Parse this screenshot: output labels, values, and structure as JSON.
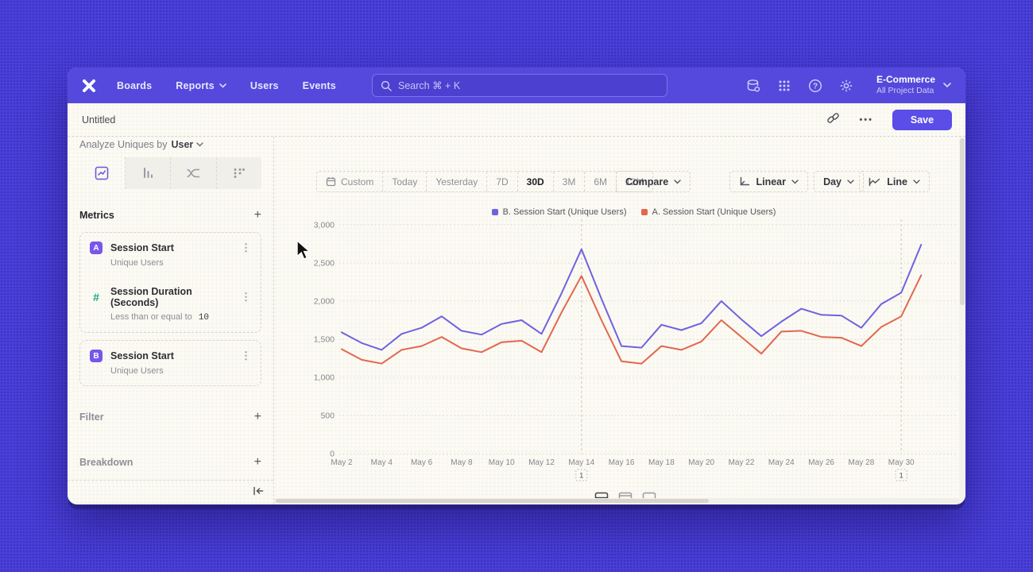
{
  "nav": {
    "menu": [
      "Boards",
      "Reports",
      "Users",
      "Events"
    ],
    "search_placeholder": "Search  ⌘ + K",
    "workspace": {
      "name": "E-Commerce",
      "subtitle": "All Project Data"
    }
  },
  "titlebar": {
    "title": "Untitled",
    "more_label": "•••",
    "save_label": "Save"
  },
  "sidebar": {
    "analyze_prefix": "Analyze Uniques by",
    "analyze_value": "User",
    "metrics_header": "Metrics",
    "metrics": [
      {
        "badge": "A",
        "badge_color": "#7856eb",
        "name": "Session Start",
        "subtitle": "Unique Users"
      },
      {
        "badge": "#",
        "badge_color": "#13a688",
        "name": "Session Duration (Seconds)",
        "subtitle_prefix": "Less than or equal to",
        "subtitle_value": "10"
      },
      {
        "badge": "B",
        "badge_color": "#7856eb",
        "name": "Session Start",
        "subtitle": "Unique Users"
      }
    ],
    "filter_header": "Filter",
    "breakdown_header": "Breakdown"
  },
  "controls": {
    "date_ranges": [
      "Custom",
      "Today",
      "Yesterday",
      "7D",
      "30D",
      "3M",
      "6M",
      "12M"
    ],
    "selected_range": "30D",
    "compare_label": "Compare",
    "scale_label": "Linear",
    "granularity_label": "Day",
    "chart_type_label": "Line"
  },
  "colors": {
    "accent": "#5a4de8",
    "nav_bar": "#5449dc",
    "series_b": "#6e63df",
    "series_a": "#e2674f"
  },
  "chart_data": {
    "type": "line",
    "x": [
      "May 2",
      "May 3",
      "May 4",
      "May 5",
      "May 6",
      "May 7",
      "May 8",
      "May 9",
      "May 10",
      "May 11",
      "May 12",
      "May 13",
      "May 14",
      "May 15",
      "May 16",
      "May 17",
      "May 18",
      "May 19",
      "May 20",
      "May 21",
      "May 22",
      "May 23",
      "May 24",
      "May 25",
      "May 26",
      "May 27",
      "May 28",
      "May 29",
      "May 30",
      "May 31"
    ],
    "series": [
      {
        "name": "B. Session Start (Unique Users)",
        "color": "#6e63df",
        "values": [
          1590,
          1450,
          1360,
          1570,
          1650,
          1800,
          1610,
          1560,
          1700,
          1750,
          1570,
          2100,
          2680,
          2030,
          1410,
          1390,
          1690,
          1620,
          1710,
          2000,
          1760,
          1540,
          1730,
          1900,
          1820,
          1810,
          1650,
          1960,
          2110,
          2740
        ]
      },
      {
        "name": "A. Session Start (Unique Users)",
        "color": "#e2674f",
        "values": [
          1370,
          1230,
          1180,
          1360,
          1410,
          1530,
          1380,
          1330,
          1460,
          1480,
          1330,
          1850,
          2330,
          1750,
          1210,
          1180,
          1410,
          1360,
          1470,
          1750,
          1530,
          1310,
          1600,
          1610,
          1530,
          1520,
          1410,
          1660,
          1800,
          2340
        ]
      }
    ],
    "ylim": [
      0,
      3000
    ],
    "yticks": [
      0,
      500,
      1000,
      1500,
      2000,
      2500,
      3000
    ],
    "xtick_every": 2,
    "grid": "dotted-horizontal",
    "legend_position": "top-center",
    "annotations": [
      {
        "index": 12,
        "x": "May 14",
        "label": "1"
      },
      {
        "index": 28,
        "x": "May 30",
        "label": "1"
      }
    ]
  }
}
